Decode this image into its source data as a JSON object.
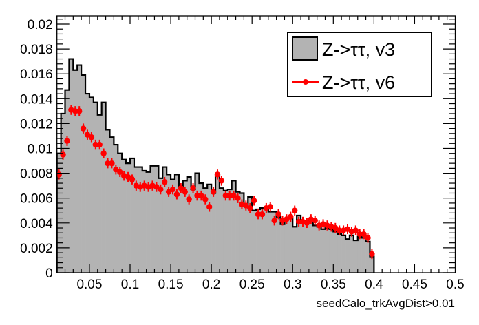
{
  "chart_data": {
    "type": "bar",
    "title": "",
    "xlabel": "seedCalo_trkAvgDist>0.01",
    "ylabel": "",
    "xlim": [
      0.01,
      0.5
    ],
    "ylim": [
      0,
      0.0205
    ],
    "bin_width": 0.005,
    "bin_start": 0.01,
    "grid": false,
    "legend_position": "top-right",
    "x_ticks": [
      "0.05",
      "0.1",
      "0.15",
      "0.2",
      "0.25",
      "0.3",
      "0.35",
      "0.4",
      "0.45",
      "0.5"
    ],
    "y_ticks": [
      "0",
      "0.002",
      "0.004",
      "0.006",
      "0.008",
      "0.01",
      "0.012",
      "0.014",
      "0.016",
      "0.018",
      "0.02"
    ],
    "series": [
      {
        "name": "Z->ττ, v3",
        "style": "filled-histogram",
        "fill": "#b3b3b3",
        "stroke": "#000000",
        "values": [
          0.0096,
          0.0128,
          0.0147,
          0.0172,
          0.0163,
          0.0167,
          0.0159,
          0.0144,
          0.0141,
          0.0137,
          0.0127,
          0.0137,
          0.0115,
          0.0109,
          0.0103,
          0.0096,
          0.0091,
          0.0088,
          0.0092,
          0.0085,
          0.0085,
          0.0082,
          0.0081,
          0.0086,
          0.0086,
          0.0076,
          0.0085,
          0.0079,
          0.0075,
          0.0079,
          0.0069,
          0.0074,
          0.0077,
          0.0067,
          0.008,
          0.0072,
          0.0068,
          0.0071,
          0.0064,
          0.0079,
          0.0068,
          0.0066,
          0.0067,
          0.0074,
          0.0065,
          0.0064,
          0.0055,
          0.0061,
          0.005,
          0.0051,
          0.0052,
          0.0051,
          0.0049,
          0.0049,
          0.0045,
          0.0039,
          0.0043,
          0.0044,
          0.0037,
          0.0046,
          0.0042,
          0.0041,
          0.0042,
          0.0038,
          0.0037,
          0.0035,
          0.0036,
          0.0035,
          0.0033,
          0.0031,
          0.003,
          0.0027,
          0.003,
          0.0026,
          0.0029,
          0.0028,
          0.0025,
          0.0013
        ]
      },
      {
        "name": "Z->ττ, v6",
        "style": "markers-with-errorbars",
        "color": "#ff0000",
        "values": [
          0.0079,
          0.0095,
          0.0106,
          0.0131,
          0.013,
          0.013,
          0.0116,
          0.0111,
          0.0109,
          0.0103,
          0.0103,
          0.0096,
          0.0088,
          0.0088,
          0.0083,
          0.0081,
          0.0078,
          0.0077,
          0.0075,
          0.007,
          0.0069,
          0.007,
          0.0069,
          0.007,
          0.0069,
          0.0067,
          0.0073,
          0.0065,
          0.0067,
          0.0063,
          0.0068,
          0.0065,
          0.0059,
          0.0068,
          0.0062,
          0.0062,
          0.0059,
          0.0053,
          0.0065,
          0.0079,
          0.0074,
          0.0062,
          0.0062,
          0.0062,
          0.006,
          0.0055,
          0.0054,
          0.0052,
          0.0058,
          0.0047,
          0.0047,
          0.0052,
          0.0053,
          0.0042,
          0.0047,
          0.0042,
          0.0043,
          0.0045,
          0.005,
          0.0041,
          0.0041,
          0.004,
          0.0043,
          0.0042,
          0.0038,
          0.0039,
          0.0038,
          0.0037,
          0.0036,
          0.0034,
          0.0034,
          0.0035,
          0.0033,
          0.0034,
          0.0031,
          0.0031,
          0.0028,
          0.0015
        ],
        "errors": 0.0004
      }
    ]
  }
}
